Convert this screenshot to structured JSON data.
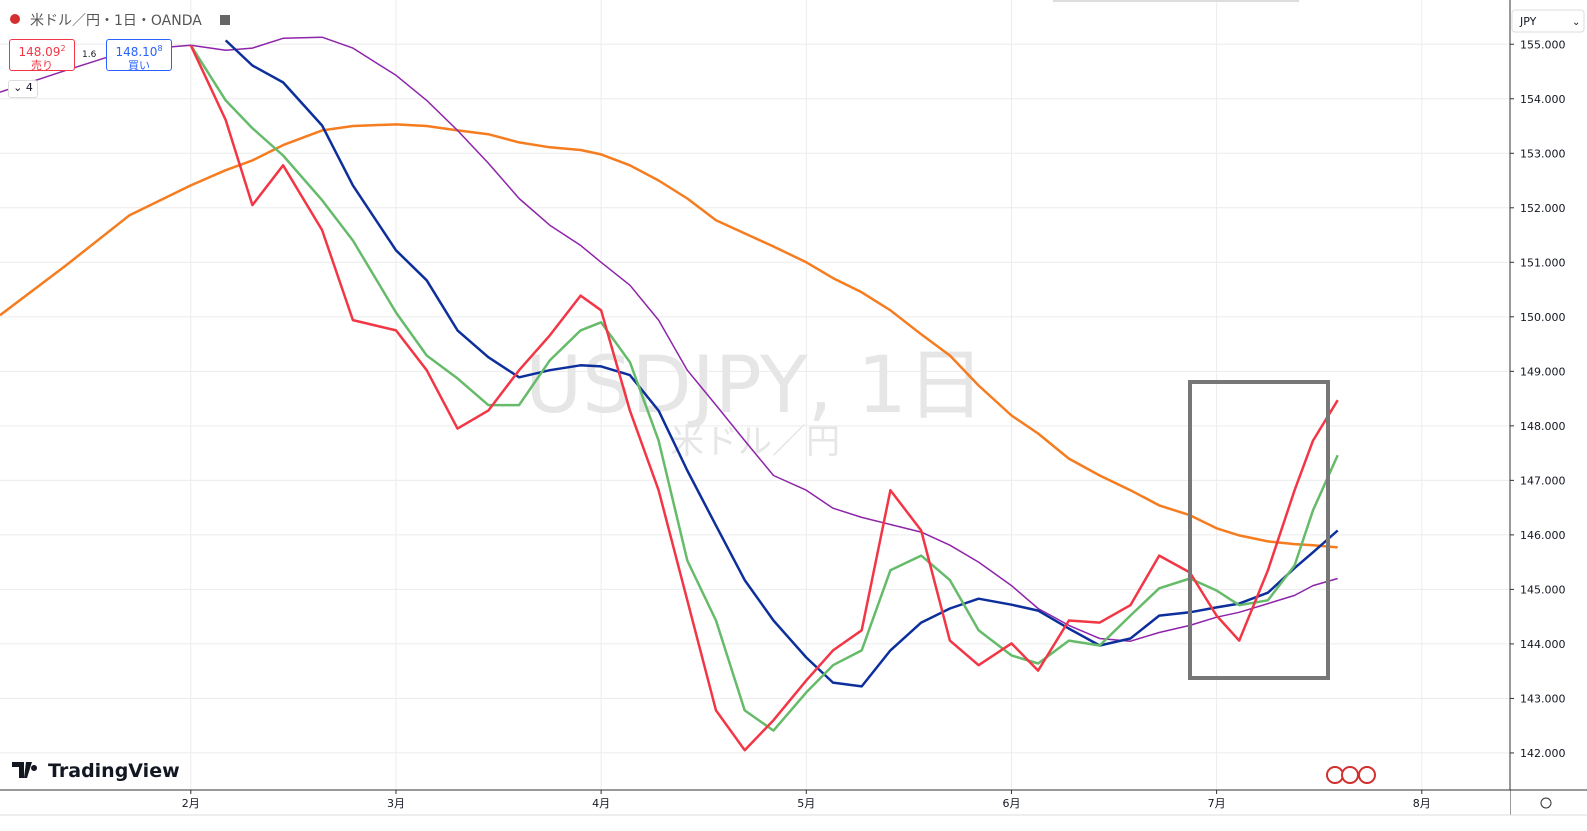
{
  "header": {
    "symbol_title": "米ドル／円・1日・OANDA",
    "bid": "148.09",
    "bid_digit": "2",
    "bid_label": "売り",
    "spread": "1.6",
    "ask": "148.10",
    "ask_digit": "8",
    "ask_label": "買い",
    "indicator_count": "4"
  },
  "watermark": {
    "title": "USDJPY, 1日",
    "subtitle": "米ドル／円"
  },
  "brand": "TradingView",
  "currency": "JPY",
  "chart_data": {
    "type": "line",
    "x": [
      1.07,
      1.39,
      1.7,
      2.0,
      2.17,
      2.3,
      2.45,
      2.64,
      2.79,
      3.0,
      3.15,
      3.3,
      3.45,
      3.6,
      3.75,
      3.9,
      4.0,
      4.14,
      4.28,
      4.42,
      4.56,
      4.7,
      4.84,
      5.0,
      5.13,
      5.27,
      5.41,
      5.56,
      5.7,
      5.84,
      6.0,
      6.13,
      6.28,
      6.43,
      6.58,
      6.72,
      6.87,
      7.0,
      7.11,
      7.25,
      7.38,
      7.47,
      7.59
    ],
    "series": [
      {
        "color": "#f57c1f",
        "width": 2.5,
        "values": [
          150.03,
          150.94,
          151.86,
          152.41,
          152.69,
          152.87,
          153.15,
          153.42,
          153.5,
          153.53,
          153.5,
          153.42,
          153.35,
          153.2,
          153.11,
          153.06,
          152.98,
          152.78,
          152.5,
          152.17,
          151.77,
          151.53,
          151.29,
          151.0,
          150.71,
          150.45,
          150.12,
          149.68,
          149.29,
          148.74,
          148.19,
          147.86,
          147.4,
          147.09,
          146.82,
          146.54,
          146.36,
          146.12,
          145.99,
          145.88,
          145.83,
          145.81,
          145.77
        ]
      },
      {
        "color": "#8e24aa",
        "width": 1.5,
        "values": [
          154.12,
          154.52,
          154.89,
          154.98,
          154.89,
          154.93,
          155.11,
          155.13,
          154.93,
          154.43,
          153.97,
          153.42,
          152.82,
          152.17,
          151.68,
          151.31,
          151.0,
          150.58,
          149.94,
          149.02,
          148.38,
          147.73,
          147.09,
          146.82,
          146.49,
          146.32,
          146.19,
          146.05,
          145.81,
          145.5,
          145.07,
          144.65,
          144.34,
          144.1,
          144.05,
          144.21,
          144.34,
          144.49,
          144.58,
          144.74,
          144.89,
          145.07,
          145.2
        ]
      },
      {
        "color": "#0d2f9c",
        "width": 2.5,
        "values": [
          null,
          null,
          null,
          null,
          155.07,
          154.61,
          154.3,
          153.51,
          152.41,
          151.22,
          150.67,
          149.75,
          149.26,
          148.89,
          149.02,
          149.11,
          149.09,
          148.93,
          148.28,
          147.18,
          146.17,
          145.17,
          144.43,
          143.75,
          143.29,
          143.22,
          143.88,
          144.39,
          144.65,
          144.83,
          144.72,
          144.61,
          144.28,
          143.97,
          144.1,
          144.52,
          144.58,
          144.67,
          144.74,
          144.94,
          145.39,
          145.68,
          146.08
        ]
      },
      {
        "color": "#66bb6a",
        "width": 2.5,
        "values": [
          null,
          null,
          null,
          154.98,
          153.97,
          153.46,
          152.96,
          152.14,
          151.4,
          150.08,
          149.29,
          148.87,
          148.38,
          148.38,
          149.2,
          149.75,
          149.9,
          149.17,
          147.73,
          145.53,
          144.43,
          142.78,
          142.41,
          143.11,
          143.61,
          143.88,
          145.35,
          145.62,
          145.17,
          144.25,
          143.79,
          143.64,
          144.06,
          143.97,
          144.52,
          145.02,
          145.2,
          144.98,
          144.71,
          144.8,
          145.44,
          146.45,
          147.46
        ]
      },
      {
        "color": "#f23645",
        "width": 2.5,
        "values": [
          null,
          null,
          null,
          154.98,
          153.61,
          152.05,
          152.78,
          151.59,
          149.94,
          149.75,
          149.02,
          147.95,
          148.28,
          149.02,
          149.66,
          150.39,
          150.12,
          148.28,
          146.82,
          144.8,
          142.78,
          142.05,
          142.6,
          143.33,
          143.88,
          144.25,
          146.82,
          146.08,
          144.06,
          143.61,
          144.01,
          143.51,
          144.43,
          144.39,
          144.71,
          145.62,
          145.31,
          144.52,
          144.06,
          145.35,
          146.82,
          147.73,
          148.47
        ]
      }
    ],
    "xlim": [
      1.07,
      8.43
    ],
    "xticks": [
      {
        "value": 2,
        "label": "2月"
      },
      {
        "value": 3,
        "label": "3月"
      },
      {
        "value": 4,
        "label": "4月"
      },
      {
        "value": 5,
        "label": "5月"
      },
      {
        "value": 6,
        "label": "6月"
      },
      {
        "value": 7,
        "label": "7月"
      },
      {
        "value": 8,
        "label": "8月"
      }
    ],
    "ylim": [
      141.32,
      155.72
    ],
    "yticks": [
      {
        "value": 142,
        "label": "142.000"
      },
      {
        "value": 143,
        "label": "143.000"
      },
      {
        "value": 144,
        "label": "144.000"
      },
      {
        "value": 145,
        "label": "145.000"
      },
      {
        "value": 146,
        "label": "146.000"
      },
      {
        "value": 147,
        "label": "147.000"
      },
      {
        "value": 148,
        "label": "148.000"
      },
      {
        "value": 149,
        "label": "149.000"
      },
      {
        "value": 150,
        "label": "150.000"
      },
      {
        "value": 151,
        "label": "151.000"
      },
      {
        "value": 152,
        "label": "152.000"
      },
      {
        "value": 153,
        "label": "153.000"
      },
      {
        "value": 154,
        "label": "154.000"
      },
      {
        "value": 155,
        "label": "155.000"
      }
    ],
    "grid": true
  }
}
